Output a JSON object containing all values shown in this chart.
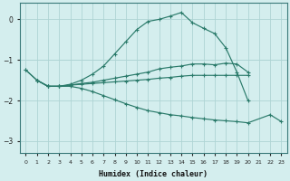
{
  "xlabel": "Humidex (Indice chaleur)",
  "bg_color": "#d4eeee",
  "grid_color": "#aed4d4",
  "line_color": "#2a7a6a",
  "xlim": [
    -0.5,
    23.5
  ],
  "ylim": [
    -3.3,
    0.4
  ],
  "yticks": [
    0,
    -1,
    -2,
    -3
  ],
  "lines": [
    {
      "x": [
        0,
        1,
        2,
        3,
        4,
        5,
        6,
        7,
        8,
        9,
        10,
        11,
        12,
        13,
        14,
        15,
        16,
        17,
        18,
        19,
        20
      ],
      "y": [
        -1.25,
        -1.5,
        -1.65,
        -1.65,
        -1.6,
        -1.5,
        -1.35,
        -1.15,
        -0.85,
        -0.55,
        -0.25,
        -0.05,
        0.0,
        0.08,
        0.17,
        -0.08,
        -0.22,
        -0.35,
        -0.7,
        -1.3,
        -2.0
      ]
    },
    {
      "x": [
        0,
        1,
        2,
        3,
        4,
        5,
        6,
        7,
        8,
        9,
        10,
        11,
        12,
        13,
        14,
        15,
        16,
        17,
        18,
        19,
        20
      ],
      "y": [
        -1.25,
        -1.5,
        -1.65,
        -1.65,
        -1.62,
        -1.58,
        -1.55,
        -1.5,
        -1.45,
        -1.4,
        -1.35,
        -1.3,
        -1.22,
        -1.18,
        -1.15,
        -1.1,
        -1.1,
        -1.12,
        -1.08,
        -1.1,
        -1.3
      ]
    },
    {
      "x": [
        1,
        2,
        3,
        4,
        5,
        6,
        7,
        8,
        9,
        10,
        11,
        12,
        13,
        14,
        15,
        16,
        17,
        18,
        19,
        20
      ],
      "y": [
        -1.5,
        -1.65,
        -1.65,
        -1.62,
        -1.6,
        -1.58,
        -1.56,
        -1.54,
        -1.52,
        -1.5,
        -1.48,
        -1.45,
        -1.43,
        -1.4,
        -1.38,
        -1.38,
        -1.38,
        -1.38,
        -1.38,
        -1.38
      ]
    },
    {
      "x": [
        1,
        2,
        3,
        4,
        5,
        6,
        7,
        8,
        9,
        10,
        11,
        12,
        13,
        14,
        15,
        16,
        17,
        18,
        19,
        20,
        22,
        23
      ],
      "y": [
        -1.5,
        -1.65,
        -1.65,
        -1.65,
        -1.7,
        -1.78,
        -1.88,
        -1.98,
        -2.08,
        -2.17,
        -2.25,
        -2.3,
        -2.35,
        -2.38,
        -2.42,
        -2.45,
        -2.48,
        -2.5,
        -2.52,
        -2.55,
        -2.35,
        -2.52
      ]
    }
  ]
}
